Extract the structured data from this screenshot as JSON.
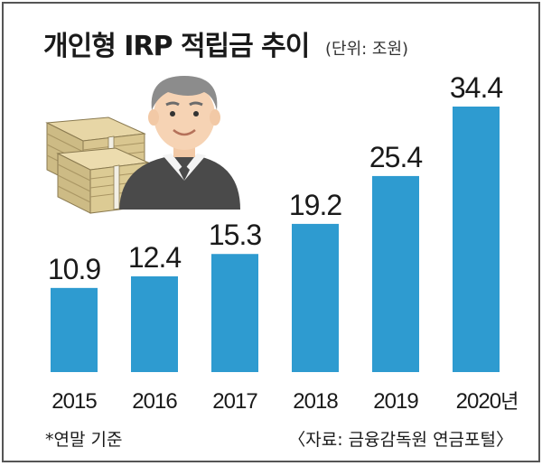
{
  "header": {
    "title": "개인형 IRP 적립금 추이",
    "unit": "(단위: 조원)"
  },
  "footer": {
    "note": "*연말 기준",
    "source": "〈자료: 금융감독원 연금포털〉"
  },
  "icons": [
    "money-stack-icon",
    "businessman-icon"
  ],
  "colors": {
    "bar": "#2e9bd0",
    "text": "#1a1a1a"
  },
  "chart_data": {
    "type": "bar",
    "title": "개인형 IRP 적립금 추이",
    "unit": "(단위: 조원)",
    "categories": [
      "2015",
      "2016",
      "2017",
      "2018",
      "2019",
      "2020"
    ],
    "category_suffix_last": "년",
    "values": [
      10.9,
      12.4,
      15.3,
      19.2,
      25.4,
      34.4
    ],
    "value_labels": [
      "10.9",
      "12.4",
      "15.3",
      "19.2",
      "25.4",
      "34.4"
    ],
    "ylim": [
      0,
      34.4
    ],
    "grid": false,
    "legend": "none"
  }
}
